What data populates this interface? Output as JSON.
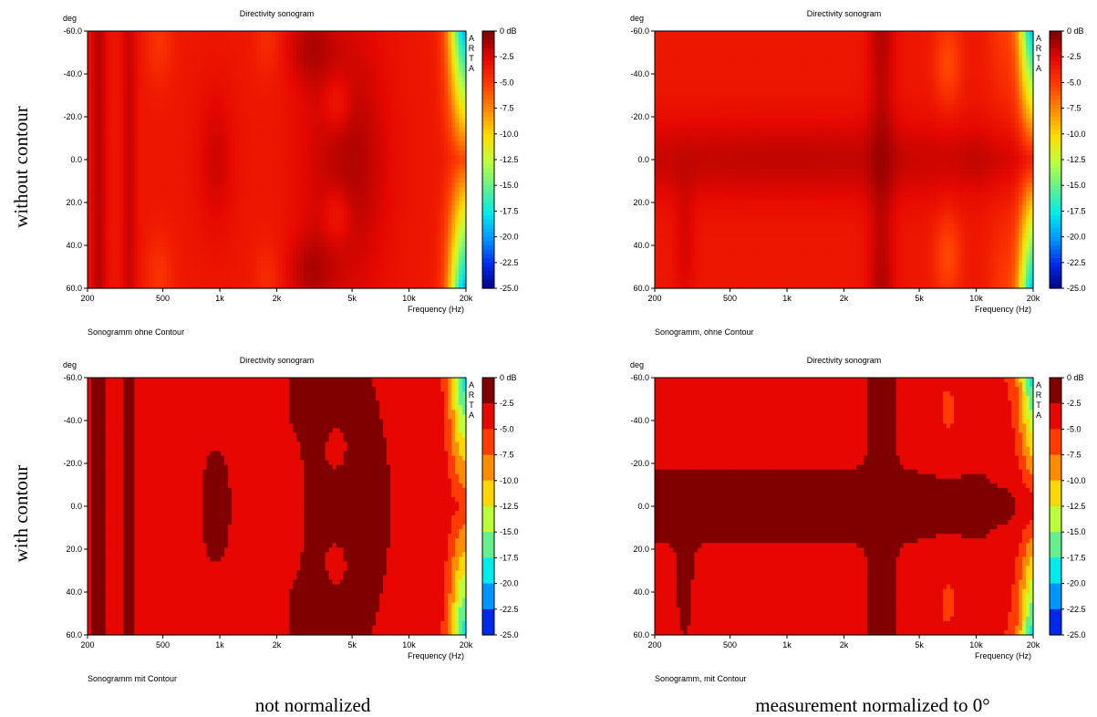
{
  "labels": {
    "row_top": "without contour",
    "row_bottom": "with contour",
    "col_left": "not normalized",
    "col_right": "measurement normalized to 0°"
  },
  "chart_data": [
    {
      "type": "heatmap",
      "title": "Directivity sonogram",
      "caption": "Sonogramm ohne Contour",
      "ylabel": "deg",
      "xlabel": "Frequency (Hz)",
      "x_scale": "log",
      "xlim": [
        200,
        20000
      ],
      "ylim": [
        -60,
        60
      ],
      "x_ticks": [
        200,
        500,
        1000,
        2000,
        5000,
        10000,
        20000
      ],
      "x_tick_labels": [
        "200",
        "500",
        "1k",
        "2k",
        "5k",
        "10k",
        "20k"
      ],
      "y_ticks": [
        -60,
        -40,
        -20,
        0,
        20,
        40,
        60
      ],
      "y_tick_labels": [
        "-60.0",
        "-40.0",
        "-20.0",
        "0.0",
        "20.0",
        "40.0",
        "60.0"
      ],
      "colorbar": {
        "range": [
          -25,
          0
        ],
        "labels": [
          "0 dB",
          "-2.5",
          "-5.0",
          "-7.5",
          "-10.0",
          "-12.5",
          "-15.0",
          "-17.5",
          "-20.0",
          "-22.5",
          "-25.0"
        ],
        "banded": false
      },
      "watermark": "ARTA",
      "normalized": false,
      "contour": false
    },
    {
      "type": "heatmap",
      "title": "Directivity sonogram",
      "caption": "Sonogramm, ohne Contour",
      "ylabel": "deg",
      "xlabel": "Frequency (Hz)",
      "x_scale": "log",
      "xlim": [
        200,
        20000
      ],
      "ylim": [
        -60,
        60
      ],
      "x_ticks": [
        200,
        500,
        1000,
        2000,
        5000,
        10000,
        20000
      ],
      "x_tick_labels": [
        "200",
        "500",
        "1k",
        "2k",
        "5k",
        "10k",
        "20k"
      ],
      "y_ticks": [
        -60,
        -40,
        -20,
        0,
        20,
        40,
        60
      ],
      "y_tick_labels": [
        "-60.0",
        "-40.0",
        "-20.0",
        "0.0",
        "20.0",
        "40.0",
        "60.0"
      ],
      "colorbar": {
        "range": [
          -25,
          0
        ],
        "labels": [
          "0 dB",
          "-2.5",
          "-5.0",
          "-7.5",
          "-10.0",
          "-12.5",
          "-15.0",
          "-17.5",
          "-20.0",
          "-22.5",
          "-25.0"
        ],
        "banded": false
      },
      "watermark": "ARTA",
      "normalized": true,
      "contour": false
    },
    {
      "type": "heatmap",
      "title": "Directivity sonogram",
      "caption": "Sonogramm mit Contour",
      "ylabel": "deg",
      "xlabel": "Frequency (Hz)",
      "x_scale": "log",
      "xlim": [
        200,
        20000
      ],
      "ylim": [
        -60,
        60
      ],
      "x_ticks": [
        200,
        500,
        1000,
        2000,
        5000,
        10000,
        20000
      ],
      "x_tick_labels": [
        "200",
        "500",
        "1k",
        "2k",
        "5k",
        "10k",
        "20k"
      ],
      "y_ticks": [
        -60,
        -40,
        -20,
        0,
        20,
        40,
        60
      ],
      "y_tick_labels": [
        "-60.0",
        "-40.0",
        "-20.0",
        "0.0",
        "20.0",
        "40.0",
        "60.0"
      ],
      "colorbar": {
        "range": [
          -25,
          0
        ],
        "labels": [
          "0 dB",
          "-2.5",
          "-5.0",
          "-7.5",
          "-10.0",
          "-12.5",
          "-15.0",
          "-17.5",
          "-20.0",
          "-22.5",
          "-25.0"
        ],
        "banded": true
      },
      "watermark": "ARTA",
      "normalized": false,
      "contour": true
    },
    {
      "type": "heatmap",
      "title": "Directivity sonogram",
      "caption": "Sonogramm, mit Contour",
      "ylabel": "deg",
      "xlabel": "Frequency (Hz)",
      "x_scale": "log",
      "xlim": [
        200,
        20000
      ],
      "ylim": [
        -60,
        60
      ],
      "x_ticks": [
        200,
        500,
        1000,
        2000,
        5000,
        10000,
        20000
      ],
      "x_tick_labels": [
        "200",
        "500",
        "1k",
        "2k",
        "5k",
        "10k",
        "20k"
      ],
      "y_ticks": [
        -60,
        -40,
        -20,
        0,
        20,
        40,
        60
      ],
      "y_tick_labels": [
        "-60.0",
        "-40.0",
        "-20.0",
        "0.0",
        "20.0",
        "40.0",
        "60.0"
      ],
      "colorbar": {
        "range": [
          -25,
          0
        ],
        "labels": [
          "0 dB",
          "-2.5",
          "-5.0",
          "-7.5",
          "-10.0",
          "-12.5",
          "-15.0",
          "-17.5",
          "-20.0",
          "-22.5",
          "-25.0"
        ],
        "banded": true
      },
      "watermark": "ARTA",
      "normalized": true,
      "contour": true
    }
  ]
}
